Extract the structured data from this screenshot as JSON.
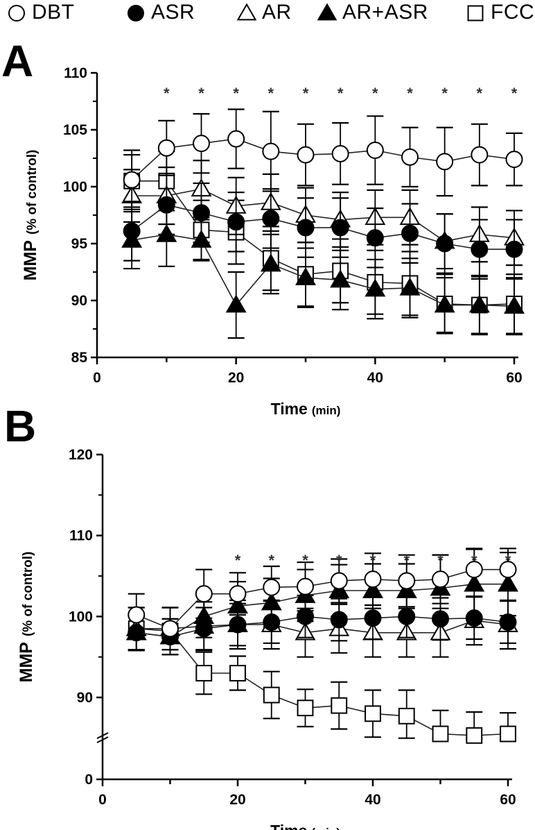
{
  "legend": [
    {
      "label": "DBT",
      "marker": "open-circle"
    },
    {
      "label": "ASR",
      "marker": "filled-circle"
    },
    {
      "label": "AR",
      "marker": "open-triangle"
    },
    {
      "label": "AR+ASR",
      "marker": "filled-triangle"
    },
    {
      "label": "FCCP",
      "marker": "open-square"
    }
  ],
  "chart_data": [
    {
      "type": "line",
      "panel": "A",
      "ylabel_main": "MMP",
      "ylabel_sub": "(% of control)",
      "xlabel_main": "Time",
      "xlabel_sub": "(min)",
      "xlim": [
        0,
        60
      ],
      "ylim": [
        85,
        110
      ],
      "xticks": [
        0,
        20,
        40,
        60
      ],
      "yticks": [
        85,
        90,
        95,
        100,
        105,
        110
      ],
      "x": [
        5,
        10,
        15,
        20,
        25,
        30,
        35,
        40,
        45,
        50,
        55,
        60
      ],
      "significance_x": [
        10,
        15,
        20,
        25,
        30,
        35,
        40,
        45,
        50,
        55,
        60
      ],
      "significance_symbol": "*",
      "series": [
        {
          "name": "FCCP",
          "marker": "open-square",
          "values": [
            100.5,
            100.5,
            96.2,
            96.0,
            93.7,
            92.3,
            92.6,
            91.6,
            91.5,
            89.7,
            89.6,
            89.7
          ],
          "err": [
            2.3,
            2.6,
            2.6,
            2.8,
            2.8,
            2.8,
            2.8,
            2.8,
            2.8,
            2.6,
            2.6,
            2.6
          ]
        },
        {
          "name": "AR",
          "marker": "open-triangle",
          "values": [
            99.2,
            99.2,
            99.8,
            98.3,
            98.6,
            97.5,
            97.1,
            97.3,
            97.3,
            95.2,
            95.8,
            95.5
          ],
          "err": [
            2.3,
            2.5,
            2.5,
            2.5,
            2.5,
            2.4,
            2.4,
            2.4,
            2.4,
            2.4,
            2.4,
            2.4
          ]
        },
        {
          "name": "ASR",
          "marker": "filled-circle",
          "values": [
            96.1,
            98.4,
            97.7,
            96.9,
            97.2,
            96.4,
            96.4,
            95.5,
            95.9,
            95.0,
            94.5,
            94.5
          ],
          "err": [
            2.6,
            2.6,
            2.6,
            2.6,
            2.6,
            2.6,
            2.6,
            2.6,
            2.6,
            2.6,
            2.6,
            2.6
          ]
        },
        {
          "name": "AR+ASR",
          "marker": "filled-triangle",
          "values": [
            95.3,
            95.8,
            95.3,
            89.6,
            93.2,
            92.0,
            91.8,
            91.0,
            91.1,
            89.6,
            89.6,
            89.5
          ],
          "err": [
            2.5,
            2.8,
            1.8,
            2.9,
            2.6,
            2.6,
            2.6,
            2.6,
            2.6,
            2.4,
            2.5,
            2.5
          ]
        },
        {
          "name": "DBT",
          "marker": "open-circle",
          "values": [
            100.6,
            103.4,
            103.8,
            104.2,
            103.1,
            102.8,
            102.9,
            103.2,
            102.6,
            102.2,
            102.8,
            102.4
          ],
          "err": [
            2.6,
            2.4,
            2.6,
            2.6,
            3.5,
            2.7,
            2.7,
            3.0,
            2.6,
            3.0,
            2.7,
            2.3
          ]
        }
      ]
    },
    {
      "type": "line",
      "panel": "B",
      "ylabel_main": "MMP",
      "ylabel_sub": "(% of control)",
      "xlabel_main": "Time",
      "xlabel_sub": "(min)",
      "xlim": [
        0,
        60
      ],
      "ylim": [
        0,
        120
      ],
      "axis_break": true,
      "xticks": [
        0,
        20,
        40,
        60
      ],
      "yticks": [
        0,
        90,
        100,
        110,
        120
      ],
      "x": [
        5,
        10,
        15,
        20,
        25,
        30,
        35,
        40,
        45,
        50,
        55,
        60
      ],
      "significance_x": [
        20,
        25,
        30,
        35,
        40,
        45,
        50,
        55,
        60
      ],
      "significance_symbol": "*",
      "series": [
        {
          "name": "FCCP",
          "marker": "open-square",
          "values": [
            98.5,
            98.2,
            93.0,
            93.0,
            90.3,
            88.7,
            89.0,
            88.0,
            87.7,
            85.5,
            85.3,
            85.5
          ],
          "err": [
            2.6,
            2.9,
            2.6,
            2.1,
            2.9,
            2.3,
            2.9,
            2.9,
            3.2,
            2.9,
            2.9,
            2.6
          ]
        },
        {
          "name": "AR",
          "marker": "open-triangle",
          "values": [
            98.5,
            98.5,
            98.8,
            99.0,
            99.0,
            98.0,
            98.5,
            98.0,
            98.0,
            98.0,
            99.5,
            99.0
          ],
          "err": [
            2.6,
            2.6,
            3.0,
            3.0,
            3.0,
            3.0,
            3.0,
            3.0,
            3.0,
            3.0,
            3.0,
            3.0
          ]
        },
        {
          "name": "ASR",
          "marker": "filled-circle",
          "values": [
            98.0,
            97.5,
            98.5,
            99.0,
            99.3,
            100.0,
            99.6,
            99.8,
            100.0,
            99.7,
            99.8,
            99.3
          ],
          "err": [
            2.2,
            2.2,
            2.6,
            2.6,
            2.6,
            2.6,
            2.6,
            2.6,
            2.6,
            2.6,
            2.6,
            2.6
          ]
        },
        {
          "name": "AR+ASR",
          "marker": "filled-triangle",
          "values": [
            98.0,
            97.5,
            100.0,
            101.3,
            101.7,
            102.6,
            103.2,
            103.2,
            103.2,
            103.5,
            104.0,
            104.0
          ],
          "err": [
            2.2,
            2.2,
            2.6,
            3.0,
            3.0,
            3.2,
            3.2,
            3.3,
            3.3,
            4.1,
            4.3,
            3.9
          ]
        },
        {
          "name": "DBT",
          "marker": "open-circle",
          "values": [
            100.2,
            98.5,
            102.8,
            102.8,
            103.6,
            103.7,
            104.4,
            104.6,
            104.4,
            104.6,
            105.8,
            105.8
          ],
          "err": [
            2.6,
            2.6,
            3.0,
            2.6,
            2.6,
            3.0,
            2.7,
            3.2,
            3.2,
            3.0,
            2.6,
            2.6
          ]
        }
      ]
    }
  ]
}
